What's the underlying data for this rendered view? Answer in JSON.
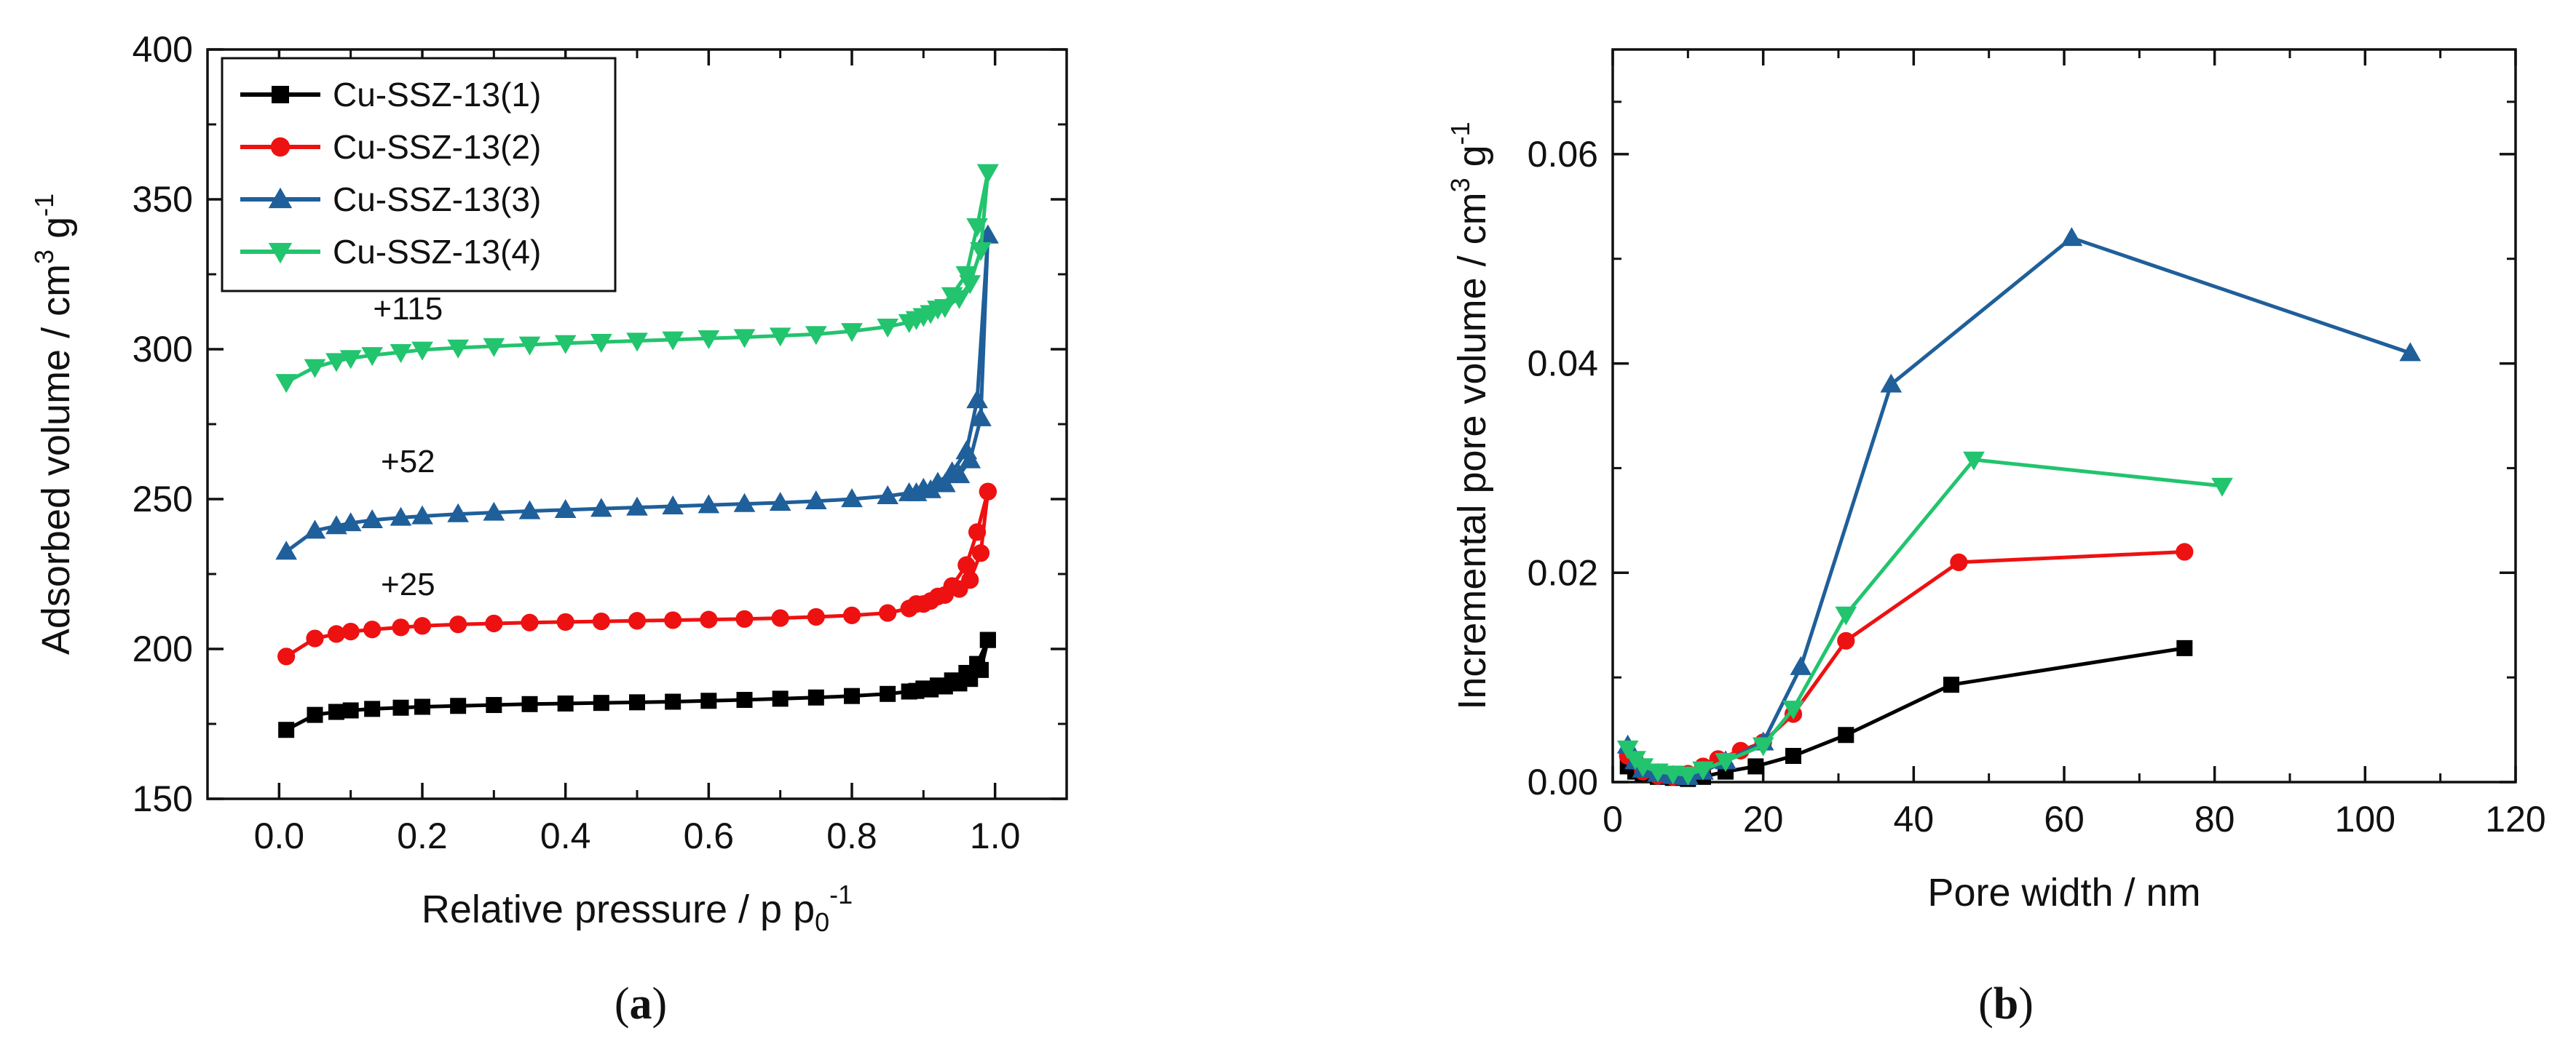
{
  "chart_data": [
    {
      "type": "line",
      "panel_label": "a",
      "xlabel": "Relative pressure / p p",
      "xlabel_sub": "0",
      "xlabel_sup": "-1",
      "ylabel": "Adsorbed volume / cm",
      "ylabel_sup": "3",
      "ylabel_unit": " g",
      "ylabel_sup2": "-1",
      "xlim": [
        -0.1,
        1.1
      ],
      "ylim": [
        150,
        400
      ],
      "xticks": [
        0.0,
        0.2,
        0.4,
        0.6,
        0.8,
        1.0
      ],
      "xtick_labels": [
        "0.0",
        "0.2",
        "0.4",
        "0.6",
        "0.8",
        "1.0"
      ],
      "yticks": [
        150,
        200,
        250,
        300,
        350,
        400
      ],
      "ytick_labels": [
        "150",
        "200",
        "250",
        "300",
        "350",
        "400"
      ],
      "legend": "top-left",
      "annotations": [
        {
          "text": "+115",
          "x": 0.18,
          "y": 310
        },
        {
          "text": "+52",
          "x": 0.18,
          "y": 259
        },
        {
          "text": "+25",
          "x": 0.18,
          "y": 218
        }
      ],
      "series": [
        {
          "name": "Cu-SSZ-13(1)",
          "color": "#000000",
          "marker": "square",
          "adsorption": {
            "x": [
              0.01,
              0.05,
              0.08,
              0.1,
              0.13,
              0.17,
              0.2,
              0.25,
              0.3,
              0.35,
              0.4,
              0.45,
              0.5,
              0.55,
              0.6,
              0.65,
              0.7,
              0.75,
              0.8,
              0.85,
              0.88,
              0.9,
              0.92,
              0.94,
              0.96,
              0.975,
              0.99
            ],
            "y": [
              173,
              178,
              179,
              179.5,
              180,
              180.4,
              180.7,
              181,
              181.3,
              181.6,
              181.8,
              182,
              182.2,
              182.4,
              182.7,
              183,
              183.4,
              183.8,
              184.3,
              185,
              185.8,
              186.8,
              187.8,
              189.5,
              192,
              195,
              203
            ]
          },
          "desorption": {
            "x": [
              0.99,
              0.98,
              0.965,
              0.95,
              0.93,
              0.91,
              0.89
            ],
            "y": [
              203,
              193,
              190,
              188.5,
              187.5,
              186.5,
              186
            ]
          }
        },
        {
          "name": "Cu-SSZ-13(2)",
          "color": "#ee1111",
          "marker": "circle",
          "adsorption": {
            "x": [
              0.01,
              0.05,
              0.08,
              0.1,
              0.13,
              0.17,
              0.2,
              0.25,
              0.3,
              0.35,
              0.4,
              0.45,
              0.5,
              0.55,
              0.6,
              0.65,
              0.7,
              0.75,
              0.8,
              0.85,
              0.88,
              0.9,
              0.92,
              0.94,
              0.96,
              0.975,
              0.99
            ],
            "y": [
              197.5,
              203.5,
              205,
              205.8,
              206.5,
              207.2,
              207.7,
              208.2,
              208.5,
              208.8,
              209,
              209.2,
              209.4,
              209.6,
              209.8,
              210,
              210.3,
              210.7,
              211.2,
              212,
              213.5,
              215,
              217.5,
              221,
              228,
              239,
              252.5
            ]
          },
          "desorption": {
            "x": [
              0.99,
              0.98,
              0.965,
              0.95,
              0.93,
              0.91,
              0.89
            ],
            "y": [
              252.5,
              232,
              223,
              220,
              218,
              216,
              215
            ]
          }
        },
        {
          "name": "Cu-SSZ-13(3)",
          "color": "#1f5f9a",
          "marker": "triangle-up",
          "adsorption": {
            "x": [
              0.01,
              0.05,
              0.08,
              0.1,
              0.13,
              0.17,
              0.2,
              0.25,
              0.3,
              0.35,
              0.4,
              0.45,
              0.5,
              0.55,
              0.6,
              0.65,
              0.7,
              0.75,
              0.8,
              0.85,
              0.88,
              0.9,
              0.92,
              0.94,
              0.96,
              0.975,
              0.99
            ],
            "y": [
              232.5,
              239.5,
              241,
              242,
              243,
              243.8,
              244.3,
              245,
              245.5,
              246,
              246.4,
              246.8,
              247.2,
              247.6,
              248,
              248.4,
              248.8,
              249.3,
              250,
              251,
              252,
              253.5,
              255.5,
              259,
              266,
              283,
              338
            ]
          },
          "desorption": {
            "x": [
              0.99,
              0.98,
              0.965,
              0.95,
              0.93,
              0.91,
              0.89
            ],
            "y": [
              338,
              277,
              263,
              258,
              255,
              253,
              252
            ]
          }
        },
        {
          "name": "Cu-SSZ-13(4)",
          "color": "#22c46e",
          "marker": "triangle-down",
          "adsorption": {
            "x": [
              0.01,
              0.05,
              0.08,
              0.1,
              0.13,
              0.17,
              0.2,
              0.25,
              0.3,
              0.35,
              0.4,
              0.45,
              0.5,
              0.55,
              0.6,
              0.65,
              0.7,
              0.75,
              0.8,
              0.85,
              0.88,
              0.9,
              0.92,
              0.94,
              0.96,
              0.975,
              0.99
            ],
            "y": [
              289,
              294,
              296,
              297,
              298,
              299,
              299.8,
              300.5,
              301,
              301.5,
              302,
              302.4,
              302.8,
              303.2,
              303.6,
              304,
              304.5,
              305,
              306,
              307.5,
              309,
              311,
              313.5,
              318,
              325,
              341,
              359
            ]
          },
          "desorption": {
            "x": [
              0.99,
              0.98,
              0.965,
              0.95,
              0.93,
              0.91,
              0.89
            ],
            "y": [
              359,
              333,
              322,
              317,
              314,
              312,
              310
            ]
          }
        }
      ]
    },
    {
      "type": "line",
      "panel_label": "b",
      "xlabel": "Pore width / nm",
      "ylabel": "Incremental pore volume / cm",
      "ylabel_sup": "3",
      "ylabel_unit": " g",
      "ylabel_sup2": "-1",
      "xlim": [
        0,
        120
      ],
      "ylim": [
        0,
        0.07
      ],
      "xticks": [
        0,
        20,
        40,
        60,
        80,
        100,
        120
      ],
      "xtick_labels": [
        "0",
        "20",
        "40",
        "60",
        "80",
        "100",
        "120"
      ],
      "yticks": [
        0,
        0.02,
        0.04,
        0.06
      ],
      "ytick_labels": [
        "0.00",
        "0.02",
        "0.04",
        "0.06"
      ],
      "series": [
        {
          "name": "Cu-SSZ-13(1)",
          "color": "#000000",
          "marker": "square",
          "x": [
            2,
            3,
            4,
            6,
            8,
            10,
            12,
            15,
            19,
            24,
            31,
            45,
            76
          ],
          "y": [
            0.0015,
            0.001,
            0.0008,
            0.0005,
            0.0004,
            0.0003,
            0.0005,
            0.001,
            0.0015,
            0.0025,
            0.0045,
            0.0093,
            0.0128
          ]
        },
        {
          "name": "Cu-SSZ-13(2)",
          "color": "#ee1111",
          "marker": "circle",
          "x": [
            2,
            3,
            4,
            6,
            8,
            10,
            12,
            14,
            17,
            20,
            24,
            31,
            46,
            76
          ],
          "y": [
            0.0025,
            0.002,
            0.001,
            0.0006,
            0.0005,
            0.0008,
            0.0015,
            0.0022,
            0.003,
            0.0038,
            0.0065,
            0.0135,
            0.021,
            0.022
          ]
        },
        {
          "name": "Cu-SSZ-13(3)",
          "color": "#1f5f9a",
          "marker": "triangle-up",
          "x": [
            2,
            3,
            4,
            6,
            8,
            10,
            12,
            15,
            20,
            25,
            37,
            61,
            106
          ],
          "y": [
            0.0035,
            0.002,
            0.0012,
            0.0008,
            0.0006,
            0.0005,
            0.001,
            0.002,
            0.0038,
            0.011,
            0.038,
            0.052,
            0.041
          ]
        },
        {
          "name": "Cu-SSZ-13(4)",
          "color": "#22c46e",
          "marker": "triangle-down",
          "x": [
            2,
            3,
            4,
            6,
            8,
            10,
            12,
            15,
            20,
            24,
            31,
            48,
            81
          ],
          "y": [
            0.0032,
            0.0022,
            0.0015,
            0.001,
            0.0008,
            0.0007,
            0.0012,
            0.002,
            0.0035,
            0.007,
            0.016,
            0.0308,
            0.0283
          ]
        }
      ]
    }
  ]
}
